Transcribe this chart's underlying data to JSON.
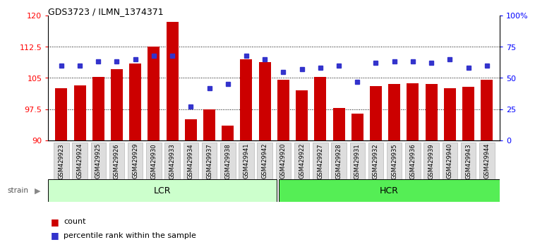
{
  "title": "GDS3723 / ILMN_1374371",
  "samples": [
    "GSM429923",
    "GSM429924",
    "GSM429925",
    "GSM429926",
    "GSM429929",
    "GSM429930",
    "GSM429933",
    "GSM429934",
    "GSM429937",
    "GSM429938",
    "GSM429941",
    "GSM429942",
    "GSM429920",
    "GSM429922",
    "GSM429927",
    "GSM429928",
    "GSM429931",
    "GSM429932",
    "GSM429935",
    "GSM429936",
    "GSM429939",
    "GSM429940",
    "GSM429943",
    "GSM429944"
  ],
  "bar_values": [
    102.5,
    103.2,
    105.3,
    107.2,
    108.5,
    112.5,
    118.5,
    95.0,
    97.5,
    93.5,
    109.5,
    108.8,
    104.5,
    102.0,
    105.2,
    97.8,
    96.5,
    103.0,
    103.5,
    103.8,
    103.5,
    102.5,
    102.8,
    104.5
  ],
  "percentile_values": [
    60,
    60,
    63,
    63,
    65,
    68,
    68,
    27,
    42,
    45,
    68,
    65,
    55,
    57,
    58,
    60,
    47,
    62,
    63,
    63,
    62,
    65,
    58,
    60
  ],
  "lcr_count": 12,
  "hcr_count": 12,
  "ylim_left": [
    90,
    120
  ],
  "ylim_right": [
    0,
    100
  ],
  "yticks_left": [
    90,
    97.5,
    105,
    112.5,
    120
  ],
  "ytick_labels_left": [
    "90",
    "97.5",
    "105",
    "112.5",
    "120"
  ],
  "yticks_right": [
    0,
    25,
    50,
    75,
    100
  ],
  "ytick_labels_right": [
    "0",
    "25",
    "50",
    "75",
    "100%"
  ],
  "bar_color": "#cc0000",
  "dot_color": "#3333cc",
  "lcr_color": "#ccffcc",
  "hcr_color": "#55ee55",
  "lcr_label": "LCR",
  "hcr_label": "HCR",
  "legend_bar_label": "count",
  "legend_dot_label": "percentile rank within the sample",
  "strain_label": "strain",
  "grid_dotted_values": [
    97.5,
    105,
    112.5
  ],
  "tick_bg_color": "#dddddd",
  "tick_border_color": "#aaaaaa"
}
